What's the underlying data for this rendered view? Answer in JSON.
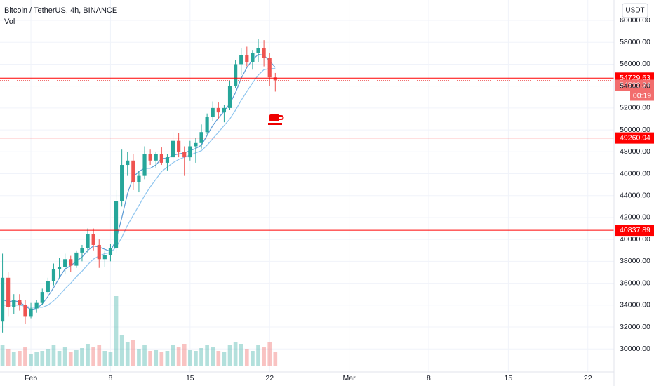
{
  "chart_data": {
    "type": "candlestick",
    "title": "Bitcoin / TetherUS, 4h, BINANCE",
    "indicator": "Vol",
    "currency": "USDT",
    "x": [
      -1.5,
      -1,
      -0.5,
      0,
      0.5,
      1,
      1.5,
      2,
      2.5,
      3,
      3.5,
      4,
      4.5,
      5,
      5.5,
      6,
      6.5,
      7,
      7.5,
      8,
      8.5,
      9,
      9.5,
      10,
      10.5,
      11,
      11.5,
      12,
      12.5,
      13,
      13.5,
      14,
      14.5,
      15,
      15.5,
      16,
      16.5,
      17,
      17.5,
      18,
      18.5,
      19,
      19.5,
      20,
      20.5,
      21,
      21.5,
      22,
      22.5
    ],
    "open": [
      32500,
      36500,
      33800,
      34500,
      34000,
      33000,
      33700,
      34200,
      35200,
      36200,
      37300,
      37500,
      38200,
      37600,
      38800,
      39200,
      40500,
      39500,
      38200,
      38600,
      39200,
      43500,
      46800,
      47200,
      45200,
      45800,
      47800,
      47200,
      47800,
      47000,
      47500,
      49000,
      48000,
      47500,
      48500,
      48800,
      49800,
      51200,
      52000,
      51600,
      52000,
      54000,
      56000,
      56800,
      56200,
      57000,
      57500,
      56600,
      54800
    ],
    "high": [
      38700,
      37000,
      35000,
      35000,
      34500,
      34200,
      34500,
      35500,
      36500,
      37800,
      38300,
      38700,
      38500,
      39000,
      39500,
      41000,
      41000,
      40000,
      39000,
      39600,
      44500,
      48200,
      48000,
      47800,
      46200,
      48500,
      48200,
      48000,
      48400,
      47800,
      49800,
      49700,
      48500,
      49000,
      49300,
      50500,
      51500,
      52600,
      52500,
      52300,
      54500,
      56400,
      57500,
      57600,
      57300,
      58300,
      58200,
      57000,
      55200
    ],
    "low": [
      31500,
      33000,
      33200,
      33500,
      32300,
      32800,
      33300,
      34000,
      35000,
      35800,
      36500,
      36800,
      37000,
      37400,
      38000,
      38800,
      39000,
      37400,
      37500,
      38000,
      38800,
      43000,
      45800,
      44500,
      44300,
      45500,
      46800,
      46500,
      46800,
      46300,
      47200,
      47500,
      45800,
      47200,
      47000,
      48300,
      49600,
      50800,
      51000,
      50700,
      51800,
      53800,
      55000,
      55800,
      55500,
      56200,
      55800,
      54000,
      53500
    ],
    "close": [
      36500,
      33800,
      34500,
      34000,
      33000,
      33700,
      34200,
      35200,
      36200,
      37300,
      37500,
      38200,
      37600,
      38800,
      39200,
      40500,
      39500,
      38200,
      38600,
      39200,
      43500,
      46800,
      47200,
      45200,
      45800,
      47800,
      47200,
      47800,
      47000,
      47500,
      49000,
      48000,
      47500,
      48500,
      48800,
      49800,
      51200,
      52000,
      51600,
      52000,
      54000,
      56000,
      56800,
      56200,
      57000,
      57500,
      56600,
      54800,
      54523.24
    ],
    "volume": [
      30,
      25,
      20,
      22,
      28,
      18,
      20,
      22,
      25,
      30,
      22,
      28,
      20,
      24,
      26,
      32,
      28,
      30,
      22,
      20,
      100,
      45,
      35,
      38,
      25,
      30,
      22,
      24,
      20,
      22,
      30,
      28,
      32,
      24,
      22,
      26,
      30,
      28,
      22,
      20,
      30,
      35,
      32,
      25,
      22,
      30,
      28,
      35,
      20
    ],
    "up_color": "#26a69a",
    "down_color": "#ef5350",
    "series": [
      {
        "color": "#5b9bd5",
        "values": [
          34500,
          34300,
          34400,
          34300,
          33900,
          33600,
          33700,
          34100,
          34800,
          35600,
          36500,
          37300,
          37600,
          38000,
          38400,
          39000,
          39400,
          39300,
          39100,
          38900,
          40000,
          42000,
          44200,
          45700,
          46200,
          46500,
          46500,
          46800,
          47400,
          47400,
          47700,
          47800,
          47900,
          48100,
          48300,
          48600,
          49500,
          50400,
          51100,
          51700,
          52400,
          53400,
          54700,
          55700,
          56400,
          56900,
          56800,
          56300,
          55700
        ]
      },
      {
        "color": "#8ec5ef",
        "values": [
          34000,
          34000,
          34000,
          34000,
          33900,
          33800,
          33800,
          33800,
          34000,
          34400,
          34900,
          35500,
          36000,
          36600,
          37100,
          37700,
          38200,
          38500,
          38700,
          38800,
          39300,
          40200,
          41300,
          42200,
          43100,
          44000,
          44800,
          45500,
          46200,
          46600,
          47000,
          47300,
          47500,
          47700,
          47900,
          48100,
          48600,
          49200,
          49800,
          50400,
          51000,
          51800,
          52700,
          53500,
          54300,
          55000,
          55500,
          55600,
          55600
        ]
      }
    ],
    "xlim": [
      -1.72,
      52.3
    ],
    "xticks": [
      {
        "value": 1,
        "label": "Feb"
      },
      8,
      15,
      22,
      {
        "value": 29,
        "label": "Mar"
      },
      {
        "value": 36,
        "label": "8"
      },
      {
        "value": 43,
        "label": "15"
      },
      {
        "value": 50,
        "label": "22"
      }
    ],
    "ylim": [
      27900,
      61860
    ],
    "yticks": [
      {
        "value": 30000,
        "label": "30000.00"
      },
      {
        "value": 32000,
        "label": "32000.00"
      },
      {
        "value": 34000,
        "label": "34000.00"
      },
      {
        "value": 36000,
        "label": "36000.00"
      },
      {
        "value": 38000,
        "label": "38000.00"
      },
      {
        "value": 40000,
        "label": "40000.00"
      },
      {
        "value": 42000,
        "label": "42000.00"
      },
      {
        "value": 44000,
        "label": "44000.00"
      },
      {
        "value": 46000,
        "label": "46000.00"
      },
      {
        "value": 48000,
        "label": "48000.00"
      },
      {
        "value": 50000,
        "label": "50000.00"
      },
      {
        "value": 52000,
        "label": "52000.00"
      },
      {
        "value": 54000,
        "label": "54000.00"
      },
      {
        "value": 56000,
        "label": "56000.00"
      },
      {
        "value": 58000,
        "label": "58000.00"
      },
      {
        "value": 60000,
        "label": "60000.00"
      }
    ],
    "grid": true,
    "levels": [
      {
        "value": 54729.63,
        "color": "#ff0000"
      },
      {
        "value": 49260.94,
        "color": "#ff0000"
      },
      {
        "value": 40837.89,
        "color": "#ff0000"
      }
    ],
    "last_price": {
      "value": 54523.24,
      "countdown": "00:19",
      "color": "#f26d6d"
    }
  }
}
